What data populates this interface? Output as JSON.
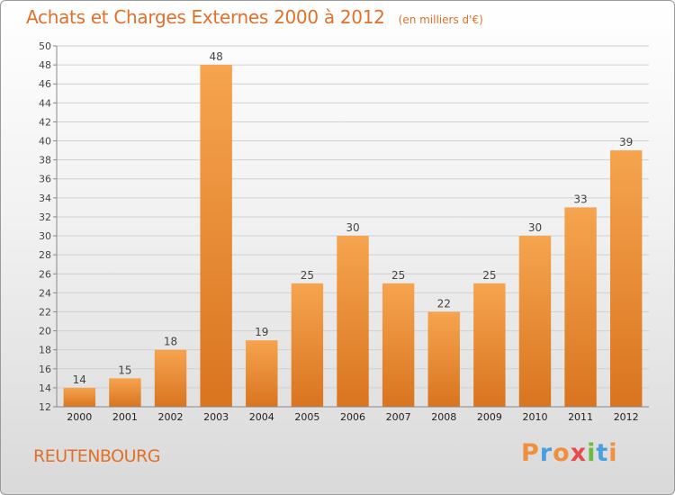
{
  "chart_data": {
    "type": "bar",
    "title": "Achats et Charges Externes 2000 à 2012",
    "subtitle": "(en milliers d'€)",
    "categories": [
      "2000",
      "2001",
      "2002",
      "2003",
      "2004",
      "2005",
      "2006",
      "2007",
      "2008",
      "2009",
      "2010",
      "2011",
      "2012"
    ],
    "values": [
      14,
      15,
      18,
      48,
      19,
      25,
      30,
      25,
      22,
      25,
      30,
      33,
      39
    ],
    "ylim": [
      12,
      50
    ],
    "yticks": [
      12,
      14,
      16,
      18,
      20,
      22,
      24,
      26,
      28,
      30,
      32,
      34,
      36,
      38,
      40,
      42,
      44,
      46,
      48,
      50
    ],
    "grid": true,
    "legend": "none",
    "bar_color": "#f0903c",
    "accent_color": "#e0702a"
  },
  "footer": {
    "place": "REUTENBOURG",
    "logo": "Proxiti",
    "logo_colors": [
      "#f0903c",
      "#4a9fe0",
      "#f0903c",
      "#e84b4b",
      "#6cbd3f",
      "#4a9fe0",
      "#f0903c"
    ]
  }
}
